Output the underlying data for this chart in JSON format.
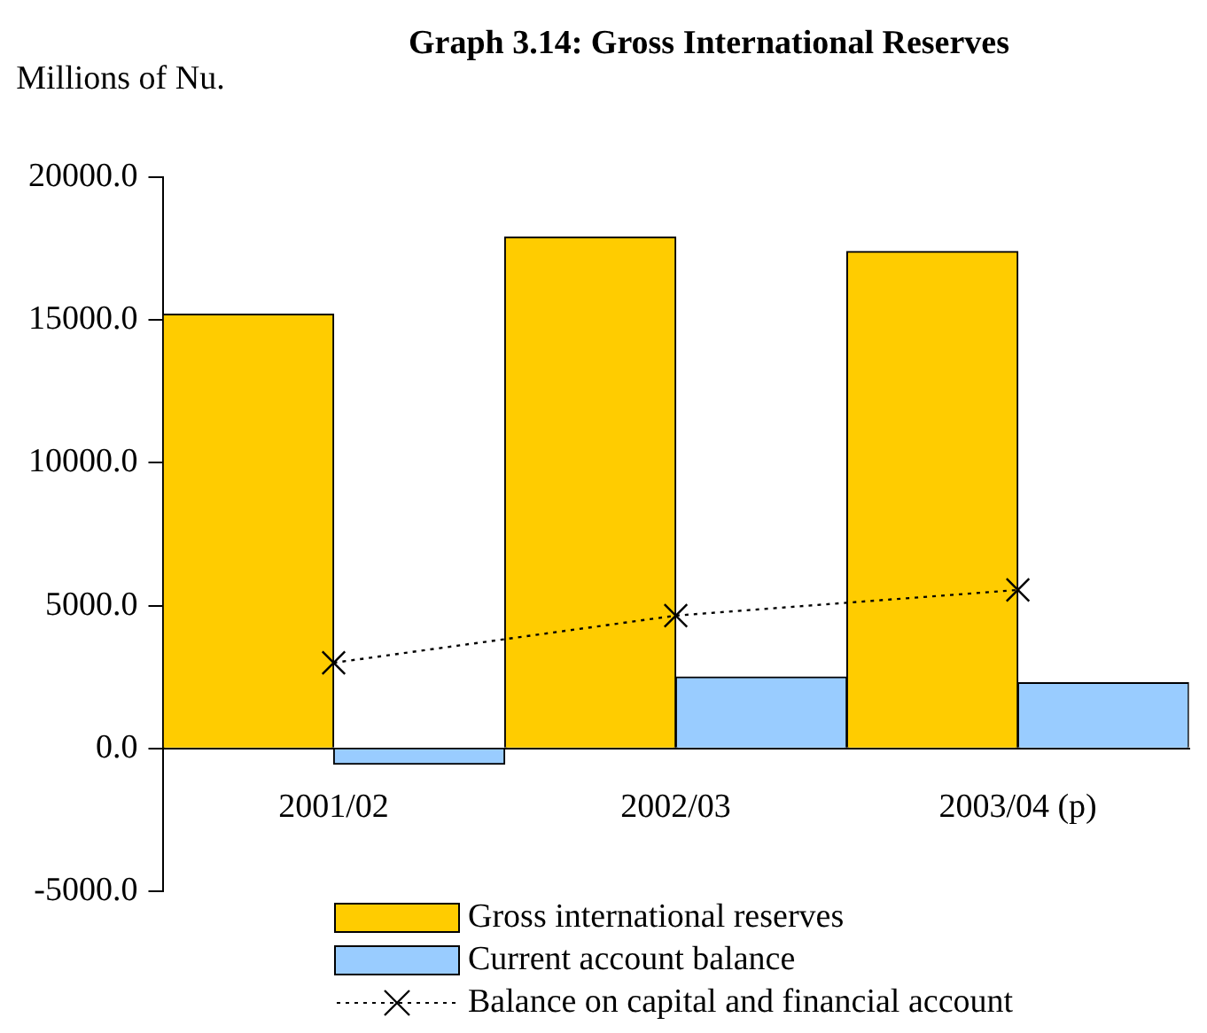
{
  "chart_data": {
    "type": "bar",
    "title": "Graph 3.14: Gross International Reserves",
    "ylabel": "Millions of Nu.",
    "categories": [
      "2001/02",
      "2002/03",
      "2003/04 (p)"
    ],
    "series": [
      {
        "name": "Gross international reserves",
        "color": "#ffcc00",
        "values": [
          15200,
          17900,
          17400
        ]
      },
      {
        "name": "Current account balance",
        "color": "#99ccff",
        "values": [
          -550,
          2500,
          2300
        ]
      },
      {
        "name": "Balance on capital and financial account",
        "type": "line",
        "color": "#000000",
        "marker": "cross",
        "line_style": "dotted",
        "values": [
          3000,
          4650,
          5550
        ]
      }
    ],
    "ylim": [
      -5000,
      20000
    ],
    "yticks": [
      {
        "value": -5000,
        "label": "-5000.0"
      },
      {
        "value": 0,
        "label": "0.0"
      },
      {
        "value": 5000,
        "label": "5000.0"
      },
      {
        "value": 10000,
        "label": "10000.0"
      },
      {
        "value": 15000,
        "label": "15000.0"
      },
      {
        "value": 20000,
        "label": "20000.0"
      }
    ],
    "grid": false,
    "legend": "bottom"
  }
}
